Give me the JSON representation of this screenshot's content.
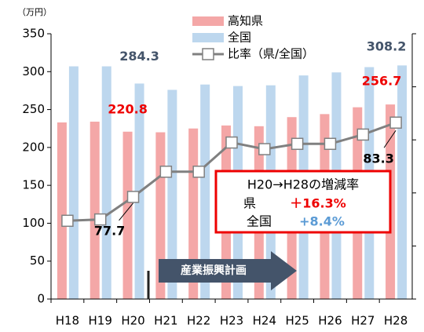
{
  "chart_data": {
    "type": "bar_line",
    "unit_label": "（万円）",
    "categories": [
      "H18",
      "H19",
      "H20",
      "H21",
      "H22",
      "H23",
      "H24",
      "H25",
      "H26",
      "H27",
      "H28"
    ],
    "series": [
      {
        "name": "高知県",
        "color": "#f4a7a7",
        "values": [
          233,
          234,
          220.8,
          220,
          225,
          229,
          228,
          240,
          244,
          253,
          256.7
        ]
      },
      {
        "name": "全国",
        "color": "#bdd7ee",
        "values": [
          307,
          307,
          284.3,
          276,
          283,
          281,
          282,
          295,
          299,
          306,
          308.2
        ]
      },
      {
        "name": "比率（県/全国）",
        "color": "#808080",
        "axis": "y2",
        "values": [
          75.9,
          76.0,
          77.7,
          79.6,
          79.6,
          81.8,
          81.3,
          81.7,
          81.7,
          82.4,
          83.3
        ]
      }
    ],
    "ylim": [
      0,
      350
    ],
    "yticks": [
      0,
      50,
      100,
      150,
      200,
      250,
      300,
      350
    ],
    "y2lim": [
      70,
      90
    ],
    "y2ticks": [
      70,
      74,
      78,
      82,
      86,
      90
    ],
    "annotation": {
      "title": "H20→H28の増減率",
      "row1_label": "県",
      "row1_value": "＋16.3%",
      "row2_label": "全国",
      "row2_value": "+8.4%"
    },
    "arrow_label": "産業振興計画"
  }
}
